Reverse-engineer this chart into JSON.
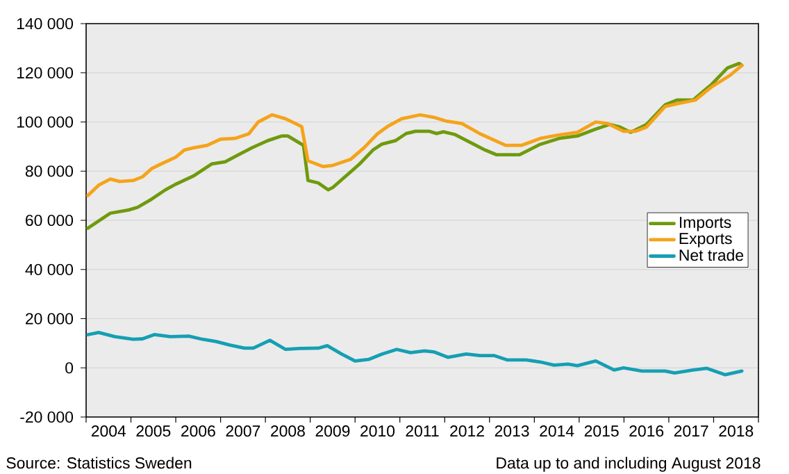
{
  "chart_data": {
    "type": "line",
    "annotations": [
      "Source:  Statistics Sweden",
      "Data up to and including August 2018"
    ],
    "xlim": [
      2004,
      2019
    ],
    "xticks": [
      {
        "value": 2004,
        "label": null
      },
      {
        "value": 2005,
        "label": null
      },
      {
        "value": 2006,
        "label": null
      },
      {
        "value": 2007,
        "label": null
      },
      {
        "value": 2008,
        "label": null
      },
      {
        "value": 2009,
        "label": null
      },
      {
        "value": 2010,
        "label": null
      },
      {
        "value": 2011,
        "label": null
      },
      {
        "value": 2012,
        "label": null
      },
      {
        "value": 2013,
        "label": null
      },
      {
        "value": 2014,
        "label": null
      },
      {
        "value": 2015,
        "label": null
      },
      {
        "value": 2016,
        "label": null
      },
      {
        "value": 2017,
        "label": null
      },
      {
        "value": 2018,
        "label": null
      },
      {
        "value": 2019,
        "label": null
      },
      {
        "value": 2004.5,
        "label": "2004"
      },
      {
        "value": 2005.5,
        "label": "2005"
      },
      {
        "value": 2006.5,
        "label": "2006"
      },
      {
        "value": 2007.5,
        "label": "2007"
      },
      {
        "value": 2008.5,
        "label": "2008"
      },
      {
        "value": 2009.5,
        "label": "2009"
      },
      {
        "value": 2010.5,
        "label": "2010"
      },
      {
        "value": 2011.5,
        "label": "2011"
      },
      {
        "value": 2012.5,
        "label": "2012"
      },
      {
        "value": 2013.5,
        "label": "2013"
      },
      {
        "value": 2014.5,
        "label": "2014"
      },
      {
        "value": 2015.5,
        "label": "2015"
      },
      {
        "value": 2016.5,
        "label": "2016"
      },
      {
        "value": 2017.5,
        "label": "2017"
      },
      {
        "value": 2018.5,
        "label": "2018"
      }
    ],
    "ylim": [
      -20000,
      140000
    ],
    "yticks": [
      {
        "value": -20000,
        "label": "-20 000"
      },
      {
        "value": 0,
        "label": "0"
      },
      {
        "value": 20000,
        "label": "20 000"
      },
      {
        "value": 40000,
        "label": "40 000"
      },
      {
        "value": 60000,
        "label": "60 000"
      },
      {
        "value": 80000,
        "label": "80 000"
      },
      {
        "value": 100000,
        "label": "100 000"
      },
      {
        "value": 120000,
        "label": "120 000"
      },
      {
        "value": 140000,
        "label": "140 000"
      }
    ],
    "grid": "y",
    "legend": "right",
    "line_style": "solid",
    "series": [
      {
        "name": "Imports",
        "color": "#6f9a0e",
        "x": [
          2004.04,
          2004.54,
          2004.95,
          2005.15,
          2005.46,
          2005.77,
          2006.0,
          2006.4,
          2006.8,
          2007.1,
          2007.4,
          2007.7,
          2008.05,
          2008.36,
          2008.5,
          2008.85,
          2008.95,
          2009.18,
          2009.4,
          2009.5,
          2009.8,
          2010.1,
          2010.4,
          2010.6,
          2010.9,
          2011.14,
          2011.35,
          2011.66,
          2011.82,
          2011.97,
          2012.23,
          2012.6,
          2012.9,
          2013.15,
          2013.67,
          2014.13,
          2014.55,
          2014.96,
          2015.37,
          2015.68,
          2015.89,
          2016.15,
          2016.5,
          2016.92,
          2017.18,
          2017.54,
          2017.95,
          2018.31,
          2018.57,
          2018.63
        ],
        "values": [
          56800,
          62900,
          64200,
          65300,
          68600,
          72400,
          74700,
          78100,
          82900,
          83800,
          86700,
          89500,
          92400,
          94300,
          94300,
          90500,
          76200,
          75200,
          72400,
          73300,
          78100,
          82900,
          88600,
          91000,
          92400,
          95300,
          96200,
          96200,
          95300,
          96000,
          94900,
          91400,
          88600,
          86700,
          86700,
          90900,
          93300,
          94300,
          97100,
          99000,
          98100,
          95800,
          99000,
          107000,
          108900,
          108900,
          115200,
          122000,
          123800,
          123000
        ]
      },
      {
        "name": "Exports",
        "color": "#f5a31a",
        "x": [
          2004.04,
          2004.28,
          2004.54,
          2004.75,
          2005.05,
          2005.26,
          2005.46,
          2005.67,
          2006.0,
          2006.19,
          2006.4,
          2006.7,
          2007.0,
          2007.32,
          2007.63,
          2007.84,
          2008.15,
          2008.45,
          2008.81,
          2008.95,
          2009.28,
          2009.5,
          2009.9,
          2010.2,
          2010.5,
          2010.72,
          2011.04,
          2011.45,
          2011.76,
          2012.02,
          2012.38,
          2012.79,
          2013.36,
          2013.72,
          2014.13,
          2014.54,
          2014.96,
          2015.37,
          2015.63,
          2015.99,
          2016.25,
          2016.5,
          2016.92,
          2017.23,
          2017.59,
          2017.95,
          2018.37,
          2018.63
        ],
        "values": [
          70100,
          74300,
          76800,
          75800,
          76200,
          77700,
          81000,
          82900,
          85700,
          88600,
          89500,
          90500,
          93000,
          93300,
          95200,
          100000,
          102900,
          101300,
          98100,
          84200,
          81900,
          82300,
          84800,
          89500,
          95200,
          98100,
          101300,
          102900,
          101900,
          100400,
          99400,
          95200,
          90500,
          90500,
          93300,
          94700,
          95800,
          100000,
          99400,
          96200,
          96200,
          97900,
          106300,
          107600,
          108900,
          114200,
          119000,
          123000
        ]
      },
      {
        "name": "Net trade",
        "color": "#159fb3",
        "x": [
          2004.04,
          2004.28,
          2004.64,
          2005.05,
          2005.26,
          2005.52,
          2005.88,
          2006.29,
          2006.6,
          2006.9,
          2007.2,
          2007.53,
          2007.73,
          2008.1,
          2008.45,
          2008.76,
          2009.18,
          2009.38,
          2009.7,
          2010.0,
          2010.3,
          2010.6,
          2010.93,
          2011.24,
          2011.55,
          2011.76,
          2012.07,
          2012.48,
          2012.79,
          2013.1,
          2013.4,
          2013.82,
          2014.13,
          2014.44,
          2014.75,
          2014.96,
          2015.37,
          2015.78,
          2015.99,
          2016.4,
          2016.92,
          2017.13,
          2017.54,
          2017.85,
          2018.26,
          2018.63
        ],
        "values": [
          13500,
          14400,
          12700,
          11600,
          11800,
          13500,
          12700,
          12900,
          11600,
          10700,
          9300,
          8000,
          8000,
          11200,
          7500,
          7900,
          8000,
          9000,
          5600,
          2800,
          3400,
          5600,
          7500,
          6200,
          6900,
          6500,
          4300,
          5600,
          5000,
          5000,
          3200,
          3200,
          2400,
          1100,
          1500,
          900,
          2800,
          -900,
          0,
          -1300,
          -1300,
          -2100,
          -900,
          -200,
          -2800,
          -1300
        ]
      }
    ]
  }
}
